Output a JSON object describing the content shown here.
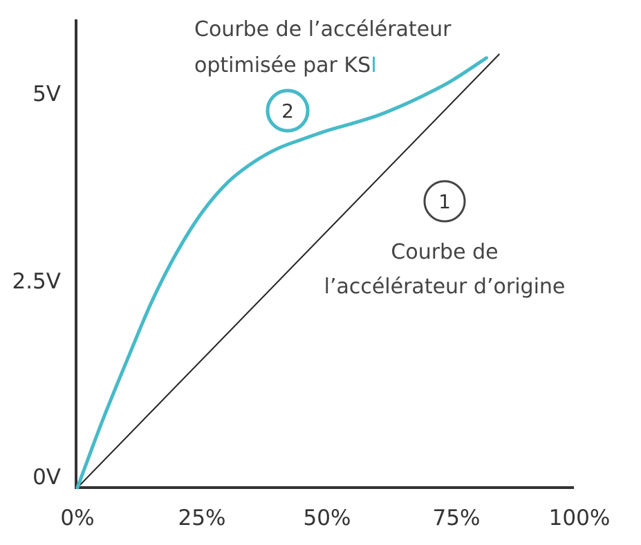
{
  "colors": {
    "accent": "#47BAC8",
    "axis": "#333333",
    "text": "#444444",
    "original_line": "#222222"
  },
  "chart_data": {
    "type": "line",
    "title": "",
    "xlabel": "",
    "ylabel": "",
    "xlim": [
      0,
      100
    ],
    "ylim": [
      0,
      5.5
    ],
    "grid": false,
    "x_ticks": [
      {
        "value": 0,
        "label": "0%"
      },
      {
        "value": 25,
        "label": "25%"
      },
      {
        "value": 50,
        "label": "50%"
      },
      {
        "value": 75,
        "label": "75%"
      },
      {
        "value": 100,
        "label": "100%"
      }
    ],
    "y_ticks": [
      {
        "value": 0,
        "label": "0V"
      },
      {
        "value": 2.5,
        "label": "2.5V"
      },
      {
        "value": 5,
        "label": "5V"
      }
    ],
    "series": [
      {
        "key": "original",
        "badge": "1",
        "label_lines": [
          "Courbe de",
          "l’accélérateur d’origine"
        ],
        "x": [
          0,
          84.3
        ],
        "y": [
          0,
          5.5
        ]
      },
      {
        "key": "optimized",
        "badge": "2",
        "label_lines": [
          "Courbe de l’accélérateur",
          "optimisée par KS",
          "I"
        ],
        "x": [
          0,
          5,
          10,
          15,
          20,
          25,
          30,
          35,
          40,
          45,
          50,
          55,
          60,
          65,
          70,
          75,
          81.7
        ],
        "y": [
          0,
          0.85,
          1.63,
          2.38,
          3.0,
          3.5,
          3.87,
          4.12,
          4.3,
          4.42,
          4.53,
          4.62,
          4.72,
          4.85,
          5.0,
          5.17,
          5.45
        ]
      }
    ]
  }
}
